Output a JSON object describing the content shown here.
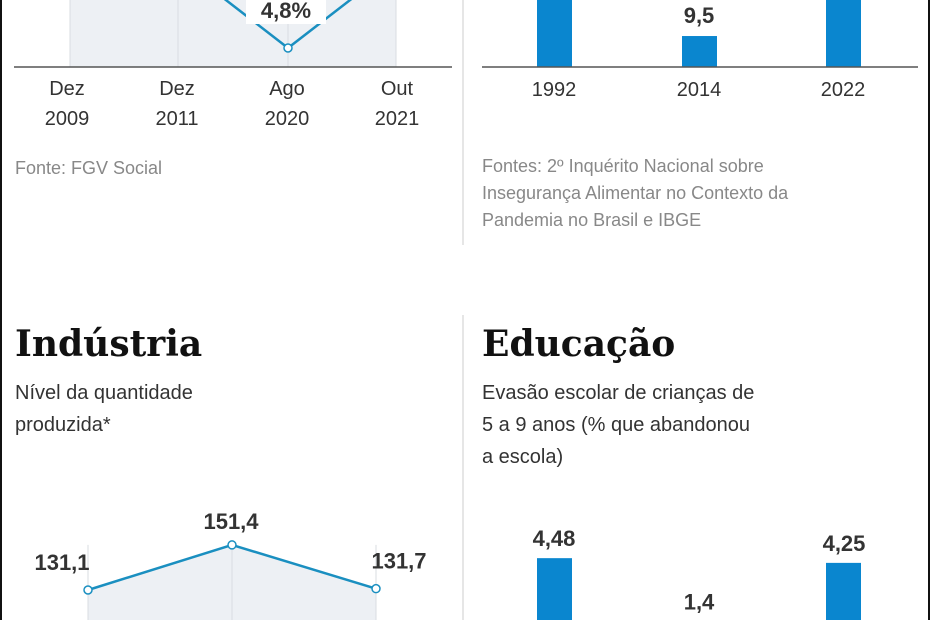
{
  "colors": {
    "bar": "#0a86cf",
    "line": "#1a8fc0",
    "area": "#edf0f4",
    "grid": "#d9dde2",
    "axis": "#555555",
    "border": "#111111"
  },
  "chart_data": [
    {
      "type": "line",
      "categories": [
        "Dez 2009",
        "Dez 2011",
        "Ago 2020",
        "Out 2021"
      ],
      "tick_lines": [
        [
          "Dez",
          "2009"
        ],
        [
          "Dez",
          "2011"
        ],
        [
          "Ago",
          "2020"
        ],
        [
          "Out",
          "2021"
        ]
      ],
      "values": [
        null,
        null,
        4.8,
        null
      ],
      "labels": [
        "",
        "",
        "4,8%",
        ""
      ],
      "source": "Fonte: FGV Social"
    },
    {
      "type": "bar",
      "categories": [
        "1992",
        "2014",
        "2022"
      ],
      "values": [
        null,
        9.5,
        null
      ],
      "labels": [
        "",
        "9,5",
        ""
      ],
      "source_lines": [
        "Fontes: 2º Inquérito Nacional sobre",
        "Insegurança Alimentar no Contexto da",
        "Pandemia no Brasil e IBGE"
      ]
    },
    {
      "type": "line",
      "title": "Indústria",
      "subtitle_lines": [
        "Nível da quantidade",
        "produzida*"
      ],
      "values": [
        131.1,
        151.4,
        131.7
      ],
      "labels": [
        "131,1",
        "151,4",
        "131,7"
      ]
    },
    {
      "type": "bar",
      "title": "Educação",
      "subtitle_lines": [
        "Evasão escolar de crianças de",
        "5 a 9 anos (% que abandonou",
        "a escola)"
      ],
      "values": [
        4.48,
        1.4,
        4.25
      ],
      "labels": [
        "4,48",
        "1,4",
        "4,25"
      ]
    }
  ]
}
